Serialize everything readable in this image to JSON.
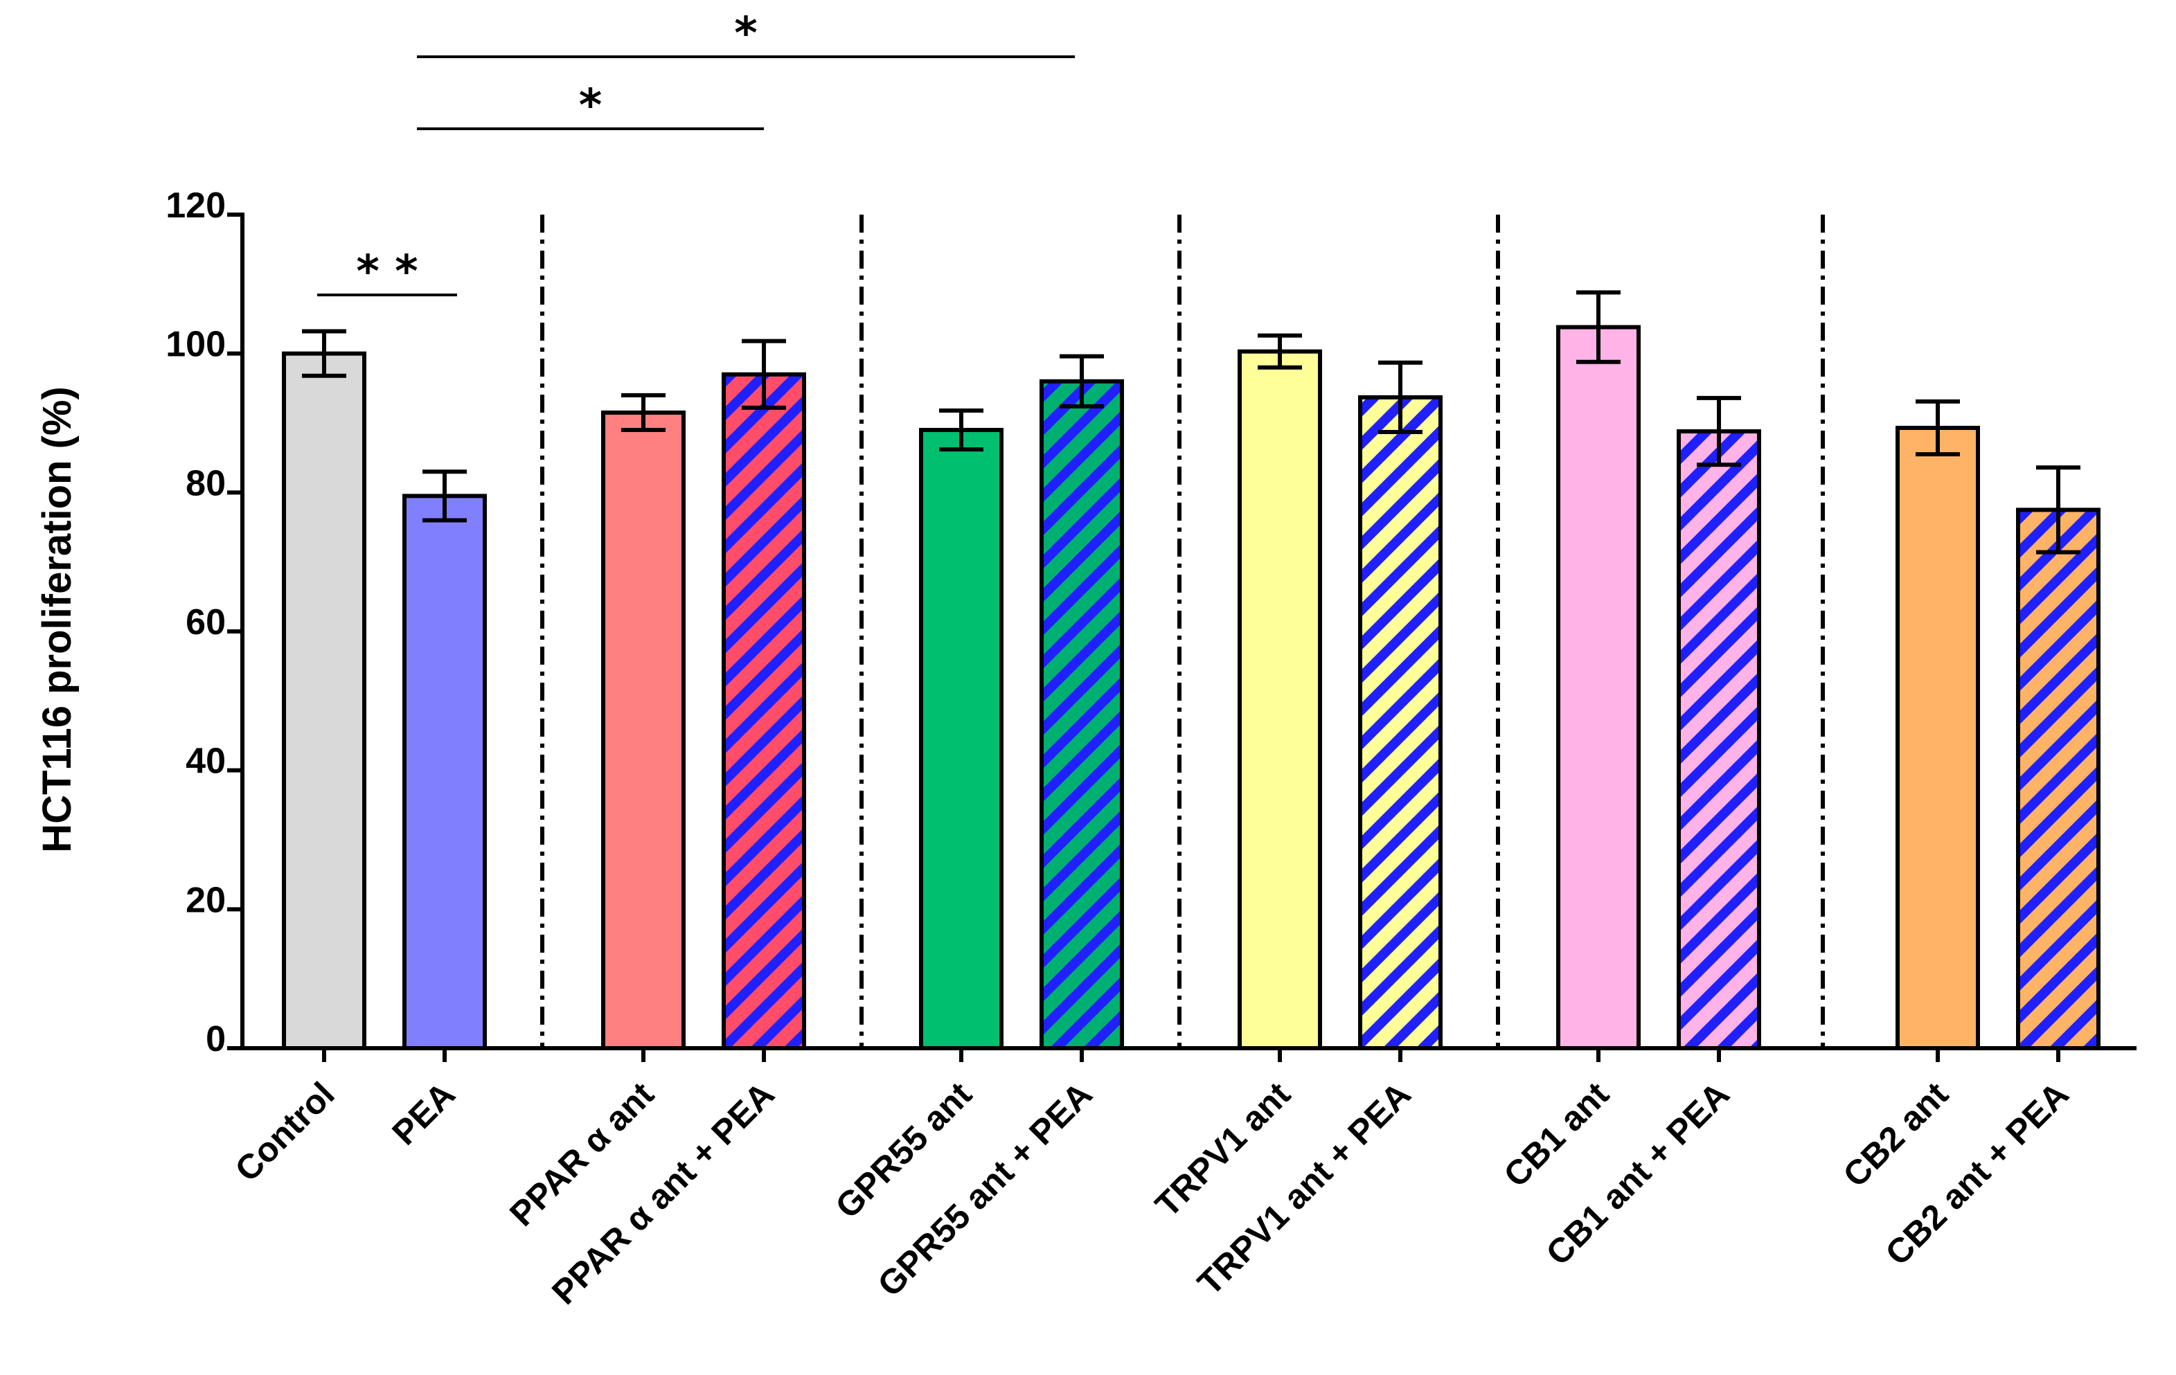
{
  "chart_data": {
    "type": "bar",
    "title": "",
    "xlabel": "",
    "ylabel": "HCT116 proliferation (%)",
    "ylim": [
      0,
      120
    ],
    "yticks": [
      0,
      20,
      40,
      60,
      80,
      100,
      120
    ],
    "grid": false,
    "legend": "none",
    "categories": [
      "Control",
      "PEA",
      "PPAR α ant",
      "PPAR α ant + PEA",
      "GPR55 ant",
      "GPR55 ant + PEA",
      "TRPV1 ant",
      "TRPV1 ant + PEA",
      "CB1 ant",
      "CB1 ant + PEA",
      "CB2 ant",
      "CB2 ant + PEA"
    ],
    "groups": [
      [
        "Control",
        "PEA"
      ],
      [
        "PPAR α ant",
        "PPAR α ant + PEA"
      ],
      [
        "GPR55 ant",
        "GPR55 ant + PEA"
      ],
      [
        "TRPV1 ant",
        "TRPV1 ant + PEA"
      ],
      [
        "CB1 ant",
        "CB1 ant + PEA"
      ],
      [
        "CB2 ant",
        "CB2 ant + PEA"
      ]
    ],
    "values": [
      100,
      79.5,
      91.5,
      97,
      89,
      96,
      100.3,
      93.7,
      103.8,
      88.8,
      89.3,
      77.5
    ],
    "errors": [
      3.2,
      3.5,
      2.5,
      4.8,
      2.8,
      3.6,
      2.3,
      5,
      5,
      4.8,
      3.8,
      6.1
    ],
    "colors": [
      "#d9d9d9",
      "#8080ff",
      "#ff8080",
      "#ff4d6a",
      "#00c070",
      "#00b070",
      "#ffff99",
      "#ffff99",
      "#ffb3e6",
      "#ffb3e6",
      "#ffb366",
      "#ffb366"
    ],
    "hatched": [
      false,
      false,
      false,
      true,
      false,
      true,
      false,
      true,
      false,
      true,
      false,
      true
    ],
    "hatch_color": "#2020ff",
    "significance": [
      {
        "from": "Control",
        "to": "PEA",
        "label": "* *"
      },
      {
        "from": "PEA",
        "to": "PPAR α ant + PEA",
        "label": "*"
      },
      {
        "from": "PEA",
        "to": "GPR55 ant + PEA",
        "label": "*"
      }
    ]
  }
}
